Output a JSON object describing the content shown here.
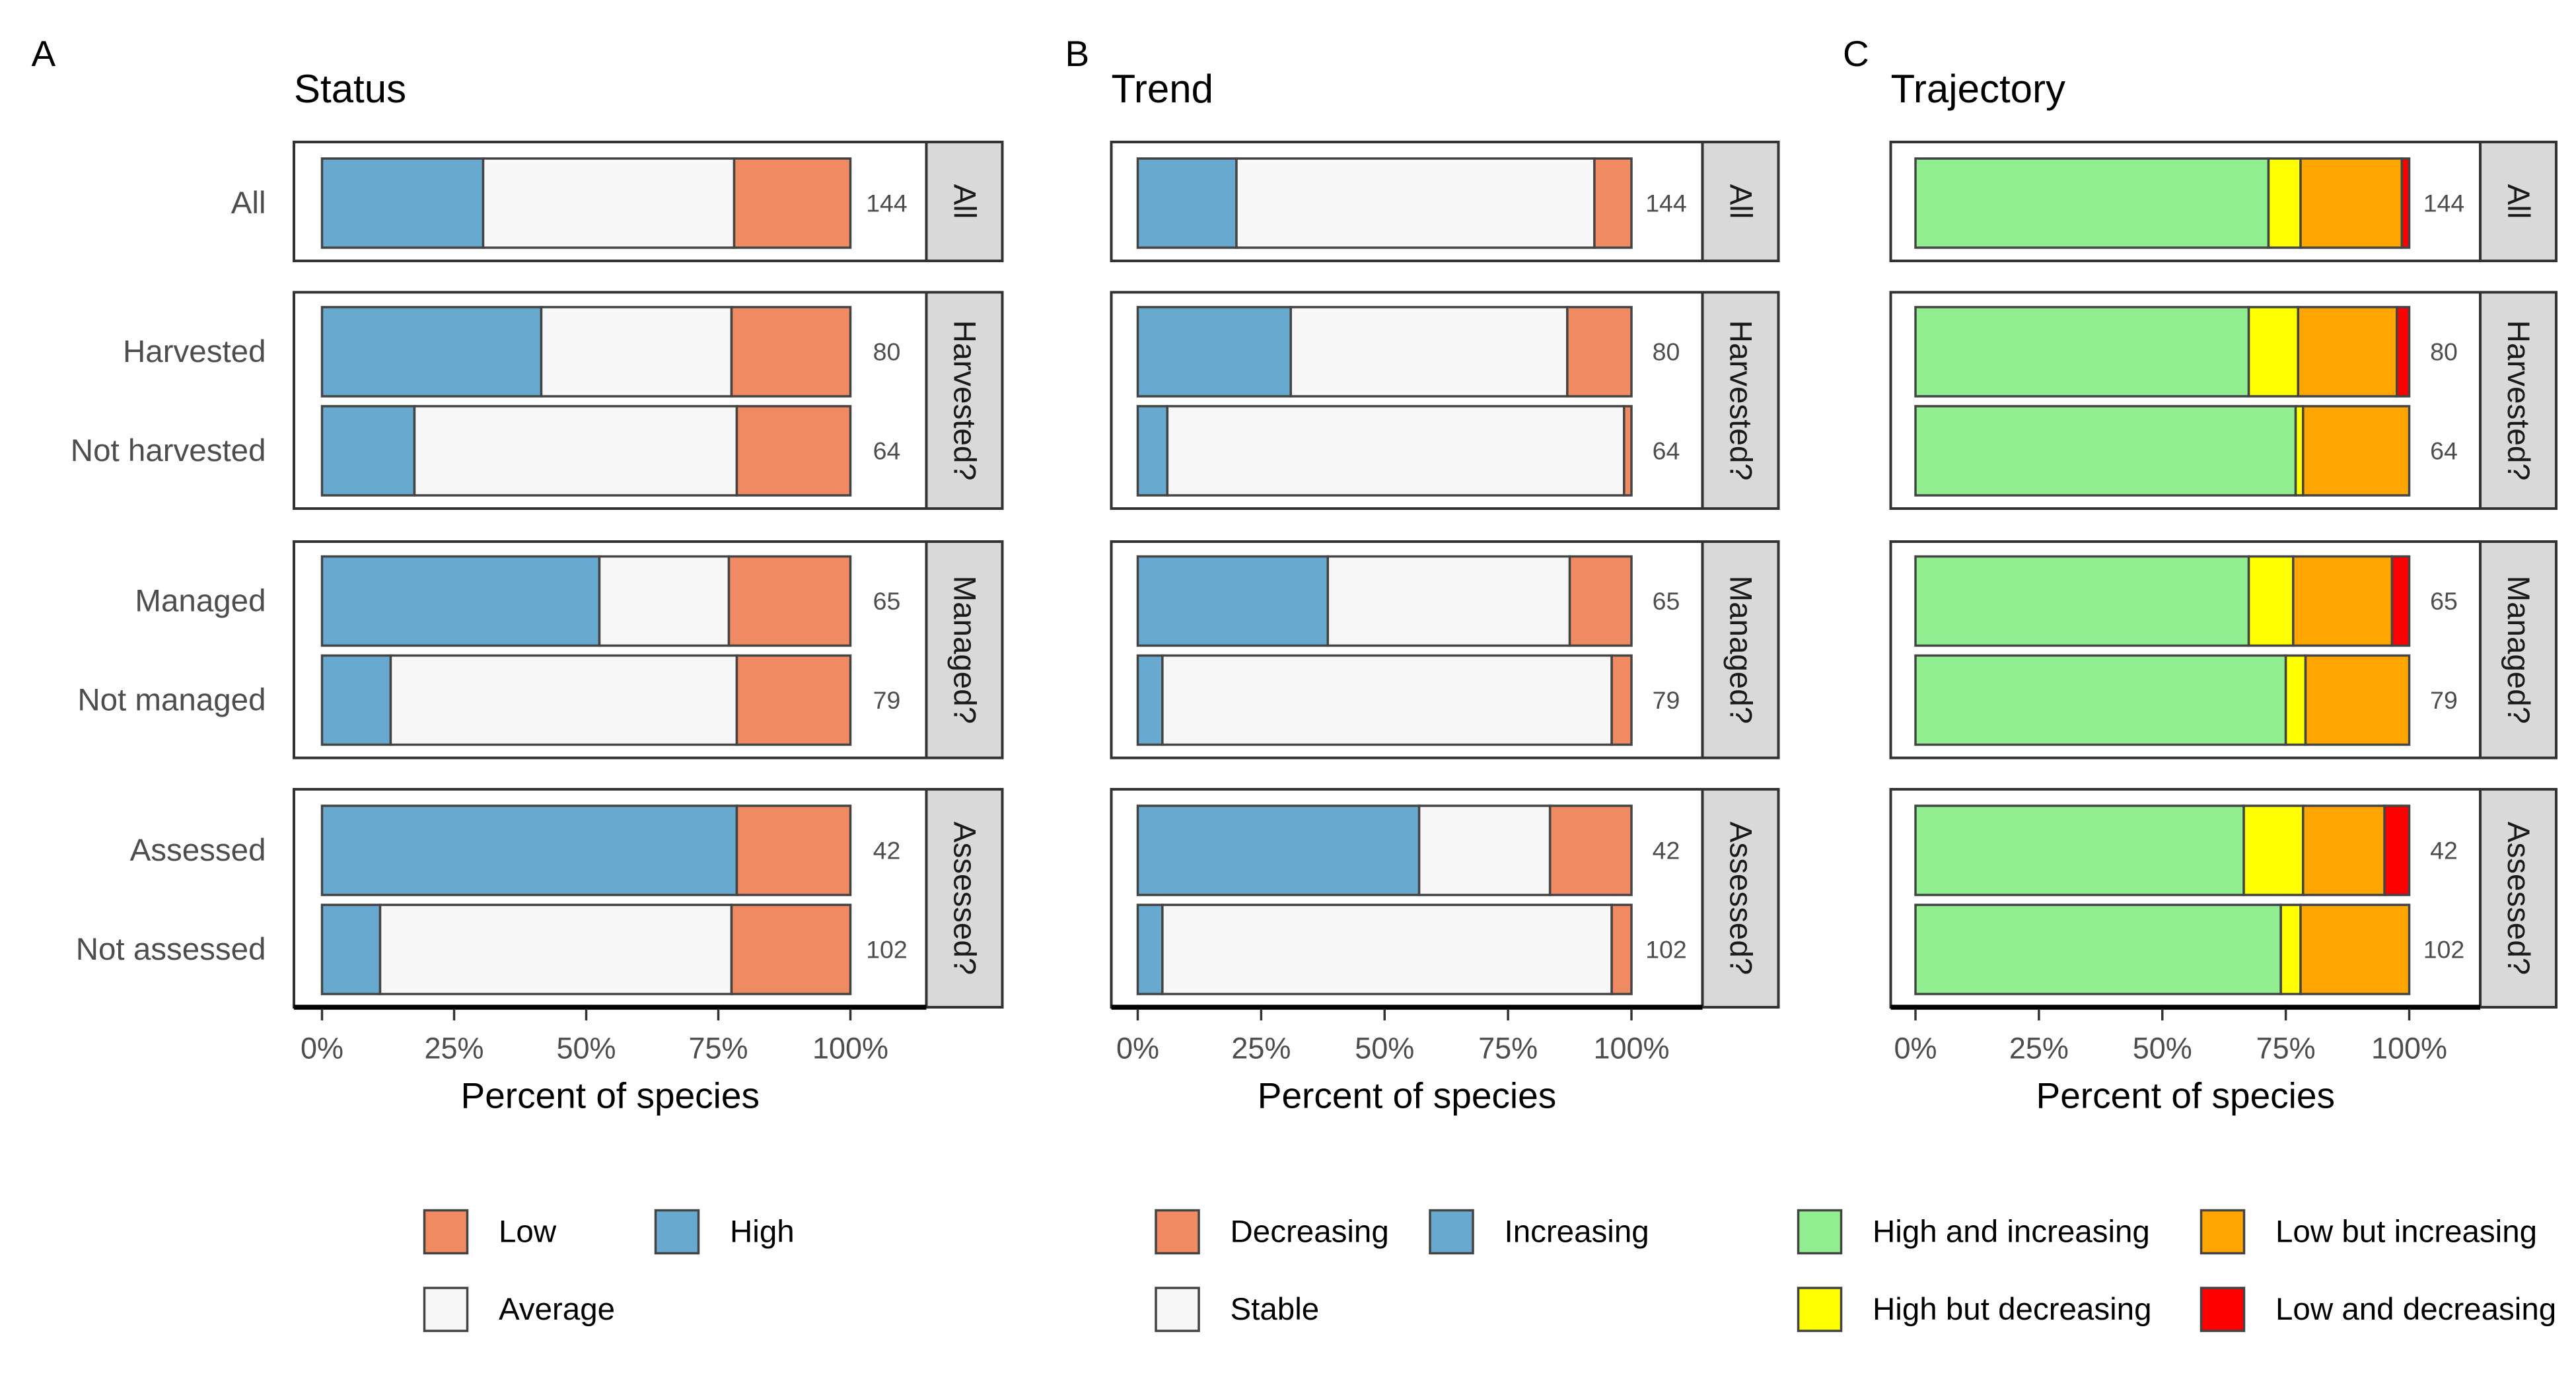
{
  "chart_data": [
    {
      "type": "bar",
      "stacked": true,
      "orientation": "horizontal",
      "panel_tag": "A",
      "title": "Status",
      "xlabel": "Percent of species",
      "xlim": [
        0,
        100
      ],
      "x_ticks": [
        "0%",
        "25%",
        "50%",
        "75%",
        "100%"
      ],
      "series": [
        {
          "name": "High",
          "color": "#67A9CF"
        },
        {
          "name": "Average",
          "color": "#F7F7F7"
        },
        {
          "name": "Low",
          "color": "#EF8A62"
        }
      ],
      "legend": {
        "position": "bottom",
        "items": [
          "Low",
          "High",
          "Average"
        ]
      },
      "facets": [
        {
          "strip": "All",
          "rows": [
            {
              "label": "All",
              "n": "144",
              "values": [
                30.5,
                47.5,
                22
              ]
            }
          ]
        },
        {
          "strip": "Harvested?",
          "rows": [
            {
              "label": "Harvested",
              "n": "80",
              "values": [
                41.5,
                36,
                22.5
              ]
            },
            {
              "label": "Not harvested",
              "n": "64",
              "values": [
                17.5,
                61,
                21.5
              ]
            }
          ]
        },
        {
          "strip": "Managed?",
          "rows": [
            {
              "label": "Managed",
              "n": "65",
              "values": [
                52.5,
                24.5,
                23
              ]
            },
            {
              "label": "Not managed",
              "n": "79",
              "values": [
                13,
                65.5,
                21.5
              ]
            }
          ]
        },
        {
          "strip": "Assessed?",
          "rows": [
            {
              "label": "Assessed",
              "n": "42",
              "values": [
                78.5,
                0,
                21.5
              ]
            },
            {
              "label": "Not assessed",
              "n": "102",
              "values": [
                11,
                66.5,
                22.5
              ]
            }
          ]
        }
      ]
    },
    {
      "type": "bar",
      "stacked": true,
      "orientation": "horizontal",
      "panel_tag": "B",
      "title": "Trend",
      "xlabel": "Percent of species",
      "xlim": [
        0,
        100
      ],
      "x_ticks": [
        "0%",
        "25%",
        "50%",
        "75%",
        "100%"
      ],
      "series": [
        {
          "name": "Increasing",
          "color": "#67A9CF"
        },
        {
          "name": "Stable",
          "color": "#F7F7F7"
        },
        {
          "name": "Decreasing",
          "color": "#EF8A62"
        }
      ],
      "legend": {
        "position": "bottom",
        "items": [
          "Decreasing",
          "Increasing",
          "Stable"
        ]
      },
      "facets": [
        {
          "strip": "All",
          "rows": [
            {
              "label": "All",
              "n": "144",
              "values": [
                20,
                72.5,
                7.5
              ]
            }
          ]
        },
        {
          "strip": "Harvested?",
          "rows": [
            {
              "label": "Harvested",
              "n": "80",
              "values": [
                31,
                56,
                13
              ]
            },
            {
              "label": "Not harvested",
              "n": "64",
              "values": [
                6,
                92.5,
                1.5
              ]
            }
          ]
        },
        {
          "strip": "Managed?",
          "rows": [
            {
              "label": "Managed",
              "n": "65",
              "values": [
                38.5,
                49,
                12.5
              ]
            },
            {
              "label": "Not managed",
              "n": "79",
              "values": [
                5,
                91,
                4
              ]
            }
          ]
        },
        {
          "strip": "Assessed?",
          "rows": [
            {
              "label": "Assessed",
              "n": "42",
              "values": [
                57,
                26.5,
                16.5
              ]
            },
            {
              "label": "Not assessed",
              "n": "102",
              "values": [
                5,
                91,
                4
              ]
            }
          ]
        }
      ]
    },
    {
      "type": "bar",
      "stacked": true,
      "orientation": "horizontal",
      "panel_tag": "C",
      "title": "Trajectory",
      "xlabel": "Percent of species",
      "xlim": [
        0,
        100
      ],
      "x_ticks": [
        "0%",
        "25%",
        "50%",
        "75%",
        "100%"
      ],
      "series": [
        {
          "name": "High and increasing",
          "color": "#90EE90"
        },
        {
          "name": "High but decreasing",
          "color": "#FFFF00"
        },
        {
          "name": "Low but increasing",
          "color": "#FFA500"
        },
        {
          "name": "Low and decreasing",
          "color": "#FF0000"
        }
      ],
      "legend": {
        "position": "bottom",
        "items": [
          "High and increasing",
          "Low but increasing",
          "High but decreasing",
          "Low and decreasing"
        ]
      },
      "facets": [
        {
          "strip": "All",
          "rows": [
            {
              "label": "All",
              "n": "144",
              "values": [
                71.5,
                6.5,
                20.5,
                1.5
              ]
            }
          ]
        },
        {
          "strip": "Harvested?",
          "rows": [
            {
              "label": "Harvested",
              "n": "80",
              "values": [
                67.5,
                10,
                20,
                2.5
              ]
            },
            {
              "label": "Not harvested",
              "n": "64",
              "values": [
                77,
                1.5,
                21.5,
                0
              ]
            }
          ]
        },
        {
          "strip": "Managed?",
          "rows": [
            {
              "label": "Managed",
              "n": "65",
              "values": [
                67.5,
                9,
                20,
                3.5
              ]
            },
            {
              "label": "Not managed",
              "n": "79",
              "values": [
                75,
                4,
                21,
                0
              ]
            }
          ]
        },
        {
          "strip": "Assessed?",
          "rows": [
            {
              "label": "Assessed",
              "n": "42",
              "values": [
                66.5,
                12,
                16.5,
                5
              ]
            },
            {
              "label": "Not assessed",
              "n": "102",
              "values": [
                74,
                4,
                22,
                0
              ]
            }
          ]
        }
      ]
    }
  ]
}
